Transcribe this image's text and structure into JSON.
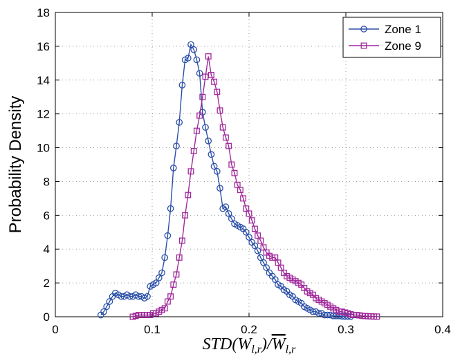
{
  "chart_data": {
    "type": "line",
    "title": "",
    "xlabel": "STD(W_{l,r}) / W̄_{l,r}",
    "ylabel": "Probability Density",
    "xlim": [
      0,
      0.4
    ],
    "ylim": [
      0,
      18
    ],
    "xticks": [
      "0",
      "0.1",
      "0.2",
      "0.3",
      "0.4"
    ],
    "yticks": [
      "0",
      "2",
      "4",
      "6",
      "8",
      "10",
      "12",
      "14",
      "16",
      "18"
    ],
    "grid": true,
    "legend_position": "top-right",
    "series": [
      {
        "name": "Zone 1",
        "color": "#2b4fa8",
        "marker": "circle",
        "x": [
          0.047,
          0.05,
          0.053,
          0.056,
          0.059,
          0.062,
          0.065,
          0.068,
          0.071,
          0.074,
          0.077,
          0.08,
          0.083,
          0.086,
          0.089,
          0.092,
          0.095,
          0.098,
          0.101,
          0.104,
          0.107,
          0.11,
          0.113,
          0.116,
          0.119,
          0.122,
          0.125,
          0.128,
          0.131,
          0.134,
          0.137,
          0.14,
          0.143,
          0.146,
          0.149,
          0.152,
          0.155,
          0.158,
          0.161,
          0.164,
          0.167,
          0.17,
          0.173,
          0.176,
          0.179,
          0.182,
          0.185,
          0.188,
          0.191,
          0.194,
          0.197,
          0.2,
          0.203,
          0.206,
          0.209,
          0.212,
          0.215,
          0.218,
          0.221,
          0.224,
          0.227,
          0.23,
          0.233,
          0.236,
          0.239,
          0.242,
          0.245,
          0.248,
          0.251,
          0.254,
          0.257,
          0.26,
          0.263,
          0.266,
          0.269,
          0.272,
          0.275,
          0.278,
          0.281,
          0.284,
          0.287,
          0.29,
          0.293,
          0.296,
          0.299,
          0.302,
          0.305
        ],
        "y": [
          0.1,
          0.3,
          0.6,
          0.9,
          1.2,
          1.4,
          1.3,
          1.2,
          1.2,
          1.3,
          1.2,
          1.2,
          1.3,
          1.2,
          1.2,
          1.1,
          1.2,
          1.8,
          1.9,
          2.0,
          2.3,
          2.6,
          3.5,
          4.8,
          6.4,
          8.8,
          10.1,
          11.5,
          13.7,
          15.2,
          15.3,
          16.1,
          15.8,
          15.2,
          14.4,
          12.1,
          11.2,
          10.4,
          9.6,
          8.9,
          8.6,
          7.6,
          6.4,
          6.5,
          6.1,
          5.8,
          5.5,
          5.4,
          5.3,
          5.2,
          5.0,
          4.7,
          4.4,
          4.2,
          3.9,
          3.5,
          3.2,
          2.9,
          2.6,
          2.4,
          2.2,
          1.9,
          1.8,
          1.6,
          1.5,
          1.3,
          1.2,
          1.0,
          0.9,
          0.8,
          0.6,
          0.5,
          0.4,
          0.3,
          0.3,
          0.2,
          0.2,
          0.1,
          0.1,
          0.1,
          0.05,
          0.05,
          0.05,
          0.03,
          0.02,
          0.02,
          0.01
        ]
      },
      {
        "name": "Zone 9",
        "color": "#a0289b",
        "marker": "square",
        "x": [
          0.08,
          0.083,
          0.086,
          0.089,
          0.092,
          0.095,
          0.098,
          0.101,
          0.104,
          0.107,
          0.11,
          0.113,
          0.116,
          0.119,
          0.122,
          0.125,
          0.128,
          0.131,
          0.134,
          0.137,
          0.14,
          0.143,
          0.146,
          0.149,
          0.152,
          0.155,
          0.158,
          0.161,
          0.164,
          0.167,
          0.17,
          0.173,
          0.176,
          0.179,
          0.182,
          0.185,
          0.188,
          0.191,
          0.194,
          0.197,
          0.2,
          0.203,
          0.206,
          0.209,
          0.212,
          0.215,
          0.218,
          0.221,
          0.224,
          0.227,
          0.23,
          0.233,
          0.236,
          0.239,
          0.242,
          0.245,
          0.248,
          0.251,
          0.254,
          0.257,
          0.26,
          0.263,
          0.266,
          0.269,
          0.272,
          0.275,
          0.278,
          0.281,
          0.284,
          0.287,
          0.29,
          0.293,
          0.296,
          0.299,
          0.302,
          0.305,
          0.308,
          0.311,
          0.314,
          0.317,
          0.32,
          0.323,
          0.326,
          0.329,
          0.332
        ],
        "y": [
          0.0,
          0.05,
          0.1,
          0.1,
          0.1,
          0.1,
          0.1,
          0.2,
          0.2,
          0.3,
          0.4,
          0.5,
          0.9,
          1.2,
          1.9,
          2.5,
          3.5,
          4.5,
          6.0,
          7.2,
          8.6,
          9.8,
          11.0,
          11.9,
          13.0,
          14.2,
          15.4,
          14.3,
          13.9,
          13.3,
          12.2,
          11.2,
          10.6,
          10.1,
          9.0,
          8.5,
          7.8,
          7.5,
          7.0,
          6.4,
          6.1,
          5.7,
          5.2,
          4.8,
          4.5,
          4.1,
          3.8,
          3.6,
          3.5,
          3.5,
          3.2,
          2.9,
          2.6,
          2.4,
          2.3,
          2.2,
          2.1,
          2.0,
          1.9,
          1.7,
          1.5,
          1.4,
          1.3,
          1.1,
          1.0,
          0.9,
          0.8,
          0.7,
          0.6,
          0.5,
          0.4,
          0.3,
          0.3,
          0.25,
          0.2,
          0.15,
          0.1,
          0.1,
          0.08,
          0.05,
          0.04,
          0.03,
          0.02,
          0.01,
          0.01
        ]
      }
    ]
  }
}
